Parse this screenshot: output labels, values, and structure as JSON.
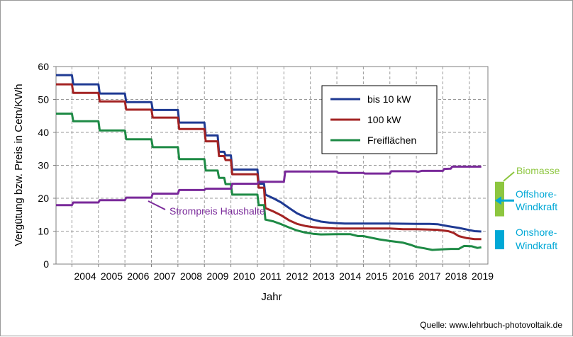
{
  "chart_data": {
    "type": "line",
    "xlabel": "Jahr",
    "ylabel": "Vergütung bzw. Preis in Cetn/KWh",
    "ylim": [
      0,
      60
    ],
    "yticks": [
      0,
      10,
      20,
      30,
      40,
      50,
      60
    ],
    "xlim": [
      2003.4,
      2019.7
    ],
    "xticks": [
      2004,
      2005,
      2006,
      2007,
      2008,
      2009,
      2010,
      2011,
      2012,
      2013,
      2014,
      2015,
      2016,
      2017,
      2018,
      2019
    ],
    "grid": true,
    "legend_position": "top-right",
    "series": [
      {
        "name": "bis 10 kW",
        "color": "#1f3a93",
        "points": [
          [
            2003.4,
            57.4
          ],
          [
            2004.0,
            57.4
          ],
          [
            2004.05,
            54.6
          ],
          [
            2005.0,
            54.6
          ],
          [
            2005.05,
            51.8
          ],
          [
            2006.0,
            51.8
          ],
          [
            2006.05,
            49.2
          ],
          [
            2007.0,
            49.2
          ],
          [
            2007.05,
            46.8
          ],
          [
            2008.0,
            46.8
          ],
          [
            2008.05,
            43.0
          ],
          [
            2009.0,
            43.0
          ],
          [
            2009.05,
            39.1
          ],
          [
            2009.5,
            39.1
          ],
          [
            2009.55,
            34.1
          ],
          [
            2009.75,
            34.1
          ],
          [
            2009.8,
            33.0
          ],
          [
            2010.0,
            33.0
          ],
          [
            2010.05,
            28.7
          ],
          [
            2011.0,
            28.7
          ],
          [
            2011.05,
            24.4
          ],
          [
            2011.25,
            24.4
          ],
          [
            2011.3,
            21.1
          ],
          [
            2011.6,
            20.0
          ],
          [
            2011.9,
            18.7
          ],
          [
            2012.2,
            17.0
          ],
          [
            2012.5,
            15.4
          ],
          [
            2012.8,
            14.3
          ],
          [
            2013.1,
            13.5
          ],
          [
            2013.4,
            12.9
          ],
          [
            2013.7,
            12.6
          ],
          [
            2014.0,
            12.4
          ],
          [
            2014.3,
            12.3
          ],
          [
            2015.0,
            12.3
          ],
          [
            2016.0,
            12.3
          ],
          [
            2017.0,
            12.2
          ],
          [
            2017.5,
            12.2
          ],
          [
            2017.8,
            12.1
          ],
          [
            2018.2,
            11.5
          ],
          [
            2018.6,
            11.0
          ],
          [
            2018.9,
            10.5
          ],
          [
            2019.2,
            10.0
          ],
          [
            2019.45,
            9.9
          ]
        ]
      },
      {
        "name": "100 kW",
        "color": "#a32323",
        "points": [
          [
            2003.4,
            54.6
          ],
          [
            2004.0,
            54.6
          ],
          [
            2004.05,
            52.0
          ],
          [
            2005.0,
            52.0
          ],
          [
            2005.05,
            49.4
          ],
          [
            2006.0,
            49.4
          ],
          [
            2006.05,
            46.9
          ],
          [
            2007.0,
            46.9
          ],
          [
            2007.05,
            44.5
          ],
          [
            2008.0,
            44.5
          ],
          [
            2008.05,
            41.0
          ],
          [
            2009.0,
            41.0
          ],
          [
            2009.05,
            37.3
          ],
          [
            2009.5,
            37.3
          ],
          [
            2009.55,
            32.8
          ],
          [
            2009.75,
            32.8
          ],
          [
            2009.8,
            31.6
          ],
          [
            2010.0,
            31.6
          ],
          [
            2010.05,
            27.3
          ],
          [
            2011.0,
            27.3
          ],
          [
            2011.05,
            23.2
          ],
          [
            2011.25,
            23.2
          ],
          [
            2011.3,
            17.0
          ],
          [
            2011.6,
            16.0
          ],
          [
            2011.9,
            14.8
          ],
          [
            2012.2,
            13.3
          ],
          [
            2012.5,
            12.2
          ],
          [
            2012.8,
            11.6
          ],
          [
            2013.1,
            11.2
          ],
          [
            2013.4,
            11.0
          ],
          [
            2013.7,
            10.9
          ],
          [
            2014.0,
            10.8
          ],
          [
            2015.0,
            10.8
          ],
          [
            2016.0,
            10.8
          ],
          [
            2016.5,
            10.6
          ],
          [
            2017.0,
            10.6
          ],
          [
            2017.5,
            10.5
          ],
          [
            2017.8,
            10.4
          ],
          [
            2018.2,
            10.0
          ],
          [
            2018.4,
            9.5
          ],
          [
            2018.6,
            8.5
          ],
          [
            2018.9,
            7.9
          ],
          [
            2019.2,
            7.6
          ],
          [
            2019.45,
            7.6
          ]
        ]
      },
      {
        "name": "Freiflächen",
        "color": "#1e8a45",
        "points": [
          [
            2003.4,
            45.7
          ],
          [
            2004.0,
            45.7
          ],
          [
            2004.05,
            43.4
          ],
          [
            2005.0,
            43.4
          ],
          [
            2005.05,
            40.6
          ],
          [
            2006.0,
            40.6
          ],
          [
            2006.05,
            37.9
          ],
          [
            2007.0,
            37.9
          ],
          [
            2007.05,
            35.5
          ],
          [
            2008.0,
            35.5
          ],
          [
            2008.05,
            31.9
          ],
          [
            2009.0,
            31.9
          ],
          [
            2009.05,
            28.4
          ],
          [
            2009.5,
            28.4
          ],
          [
            2009.55,
            26.2
          ],
          [
            2009.75,
            26.2
          ],
          [
            2009.8,
            24.3
          ],
          [
            2010.0,
            24.3
          ],
          [
            2010.05,
            21.1
          ],
          [
            2011.0,
            21.1
          ],
          [
            2011.05,
            17.9
          ],
          [
            2011.25,
            17.9
          ],
          [
            2011.3,
            13.5
          ],
          [
            2011.6,
            13.0
          ],
          [
            2011.9,
            12.1
          ],
          [
            2012.2,
            11.1
          ],
          [
            2012.5,
            10.2
          ],
          [
            2012.8,
            9.6
          ],
          [
            2013.1,
            9.2
          ],
          [
            2013.4,
            9.0
          ],
          [
            2014.0,
            9.1
          ],
          [
            2014.5,
            9.1
          ],
          [
            2014.8,
            8.5
          ],
          [
            2015.0,
            8.5
          ],
          [
            2015.3,
            8.0
          ],
          [
            2015.6,
            7.5
          ],
          [
            2016.0,
            7.0
          ],
          [
            2016.5,
            6.5
          ],
          [
            2016.8,
            5.8
          ],
          [
            2017.0,
            5.2
          ],
          [
            2017.3,
            4.8
          ],
          [
            2017.6,
            4.3
          ],
          [
            2018.0,
            4.5
          ],
          [
            2018.3,
            4.6
          ],
          [
            2018.6,
            4.6
          ],
          [
            2018.8,
            5.5
          ],
          [
            2019.1,
            5.4
          ],
          [
            2019.3,
            4.9
          ],
          [
            2019.45,
            5.1
          ]
        ]
      },
      {
        "name": "Strompreis Haushalte",
        "color": "#7a2a9a",
        "points": [
          [
            2003.4,
            17.9
          ],
          [
            2004.0,
            17.9
          ],
          [
            2004.05,
            18.7
          ],
          [
            2005.0,
            18.7
          ],
          [
            2005.05,
            19.4
          ],
          [
            2006.0,
            19.4
          ],
          [
            2006.05,
            20.2
          ],
          [
            2007.0,
            20.2
          ],
          [
            2007.05,
            21.4
          ],
          [
            2008.0,
            21.4
          ],
          [
            2008.05,
            22.5
          ],
          [
            2009.0,
            22.5
          ],
          [
            2009.05,
            22.9
          ],
          [
            2010.0,
            22.9
          ],
          [
            2010.05,
            24.4
          ],
          [
            2011.0,
            24.4
          ],
          [
            2011.05,
            25.0
          ],
          [
            2012.0,
            25.0
          ],
          [
            2012.05,
            28.1
          ],
          [
            2013.0,
            28.1
          ],
          [
            2014.0,
            28.1
          ],
          [
            2014.05,
            27.7
          ],
          [
            2015.0,
            27.7
          ],
          [
            2015.05,
            27.5
          ],
          [
            2016.0,
            27.5
          ],
          [
            2016.05,
            28.2
          ],
          [
            2017.0,
            28.2
          ],
          [
            2017.05,
            28.0
          ],
          [
            2017.2,
            28.3
          ],
          [
            2018.0,
            28.3
          ],
          [
            2018.05,
            28.9
          ],
          [
            2018.3,
            29.0
          ],
          [
            2018.35,
            29.6
          ],
          [
            2019.45,
            29.6
          ]
        ]
      }
    ],
    "annotations": [
      {
        "text": "Strompreis Haushalte",
        "color": "#7a2a9a"
      },
      {
        "text": "Biomasse",
        "color": "#8dc63f"
      },
      {
        "text": "Offshore-\nWindkraft",
        "color": "#00a8d6"
      },
      {
        "text": "Onshore-\nWindkraft",
        "color": "#00a8d6"
      }
    ],
    "side_ranges": [
      {
        "name": "Biomasse",
        "color": "#8dc63f",
        "range": [
          14.5,
          25.0
        ]
      },
      {
        "name": "Offshore-Windkraft",
        "color": "#00a8d6",
        "arrow_at": 19.3
      },
      {
        "name": "Onshore-Windkraft",
        "color": "#00a8d6",
        "range": [
          4.5,
          10.3
        ]
      }
    ],
    "source": "Quelle: www.lehrbuch-photovoltaik.de"
  }
}
